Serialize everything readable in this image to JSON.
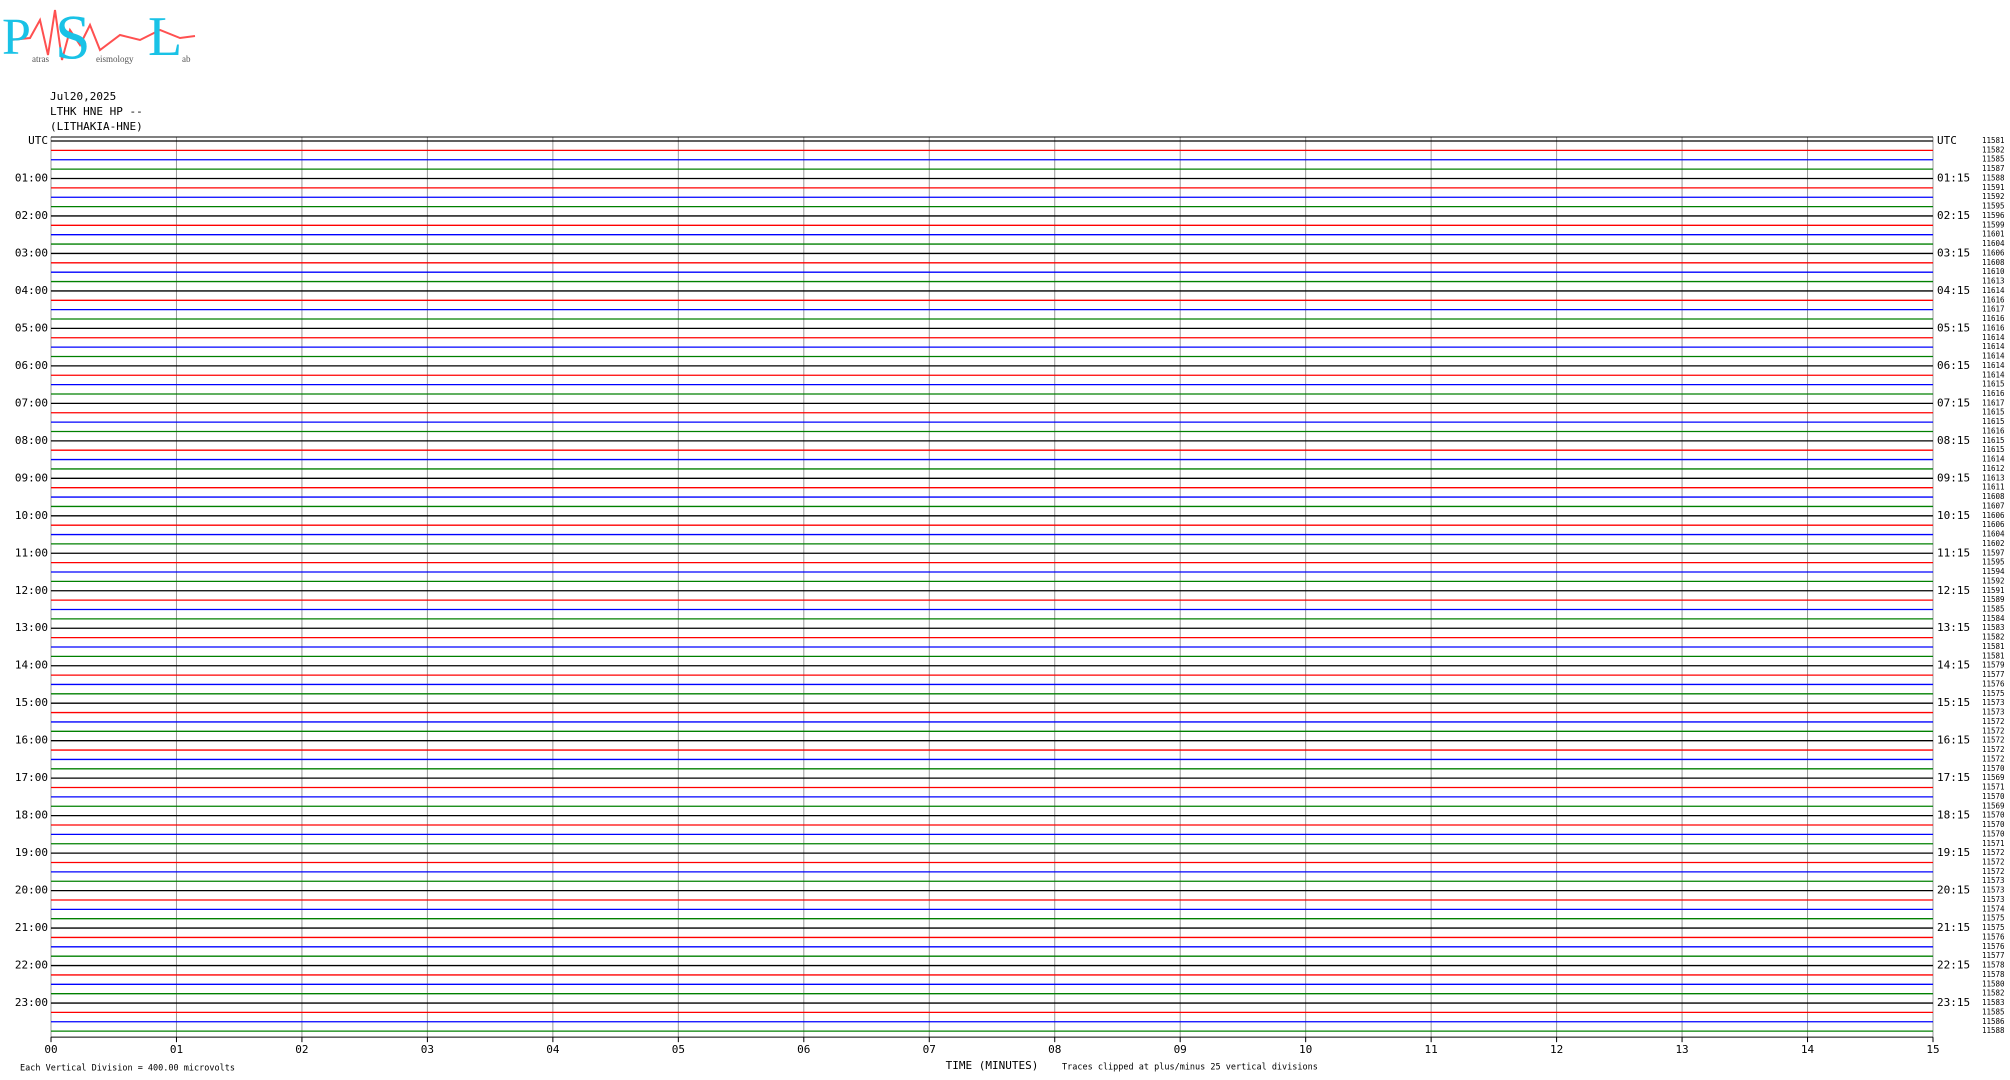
{
  "chart_data": {
    "type": "helicorder",
    "logo": {
      "letters": [
        "P",
        "S",
        "L"
      ],
      "subtext": [
        "atras",
        "eismology",
        "ab"
      ]
    },
    "date": "Jul20,2025",
    "station": "LTHK HNE HP --",
    "site": "(LITHAKIA-HNE)",
    "left_labels": [
      "UTC",
      "01:00",
      "02:00",
      "03:00",
      "04:00",
      "05:00",
      "06:00",
      "07:00",
      "08:00",
      "09:00",
      "10:00",
      "11:00",
      "12:00",
      "13:00",
      "14:00",
      "15:00",
      "16:00",
      "17:00",
      "18:00",
      "19:00",
      "20:00",
      "21:00",
      "22:00",
      "23:00"
    ],
    "right_labels": [
      "UTC",
      "01:15",
      "02:15",
      "03:15",
      "04:15",
      "05:15",
      "06:15",
      "07:15",
      "08:15",
      "09:15",
      "10:15",
      "11:15",
      "12:15",
      "13:15",
      "14:15",
      "15:15",
      "16:15",
      "17:15",
      "18:15",
      "19:15",
      "20:15",
      "21:15",
      "22:15",
      "23:15"
    ],
    "trace_colors": [
      "#000000",
      "#ff0000",
      "#0000ff",
      "#008000"
    ],
    "trace_counts": [
      11581,
      11582,
      11585,
      11587,
      11588,
      11591,
      11592,
      11595,
      11596,
      11599,
      11601,
      11604,
      11606,
      11608,
      11610,
      11613,
      11614,
      11616,
      11617,
      11616,
      11616,
      11614,
      11614,
      11614,
      11614,
      11614,
      11615,
      11616,
      11617,
      11615,
      11615,
      11616,
      11615,
      11615,
      11614,
      11612,
      11613,
      11611,
      11608,
      11607,
      11606,
      11606,
      11604,
      11602,
      11597,
      11595,
      11594,
      11592,
      11591,
      11589,
      11585,
      11584,
      11583,
      11582,
      11581,
      11581,
      11579,
      11577,
      11576,
      11575,
      11573,
      11573,
      11572,
      11572,
      11572,
      11572,
      11572,
      11570,
      11569,
      11571,
      11570,
      11569,
      11570,
      11570,
      11570,
      11571,
      11572,
      11572,
      11572,
      11573,
      11573,
      11573,
      11574,
      11575,
      11575,
      11576,
      11576,
      11577,
      11578,
      11578,
      11580,
      11582,
      11583,
      11585,
      11586,
      11588
    ],
    "xlim": [
      0,
      15
    ],
    "xticks": [
      {
        "value": 0,
        "label": "00"
      },
      {
        "value": 1,
        "label": "01"
      },
      {
        "value": 2,
        "label": "02"
      },
      {
        "value": 3,
        "label": "03"
      },
      {
        "value": 4,
        "label": "04"
      },
      {
        "value": 5,
        "label": "05"
      },
      {
        "value": 6,
        "label": "06"
      },
      {
        "value": 7,
        "label": "07"
      },
      {
        "value": 8,
        "label": "08"
      },
      {
        "value": 9,
        "label": "09"
      },
      {
        "value": 10,
        "label": "10"
      },
      {
        "value": 11,
        "label": "11"
      },
      {
        "value": 12,
        "label": "12"
      },
      {
        "value": 13,
        "label": "13"
      },
      {
        "value": 14,
        "label": "14"
      },
      {
        "value": 15,
        "label": "15"
      }
    ],
    "grid": true,
    "x_label": "TIME (MINUTES)",
    "scale_note": "Each Vertical Division =  400.00 microvolts",
    "clip_note": "Traces clipped at plus/minus 25 vertical divisions"
  }
}
